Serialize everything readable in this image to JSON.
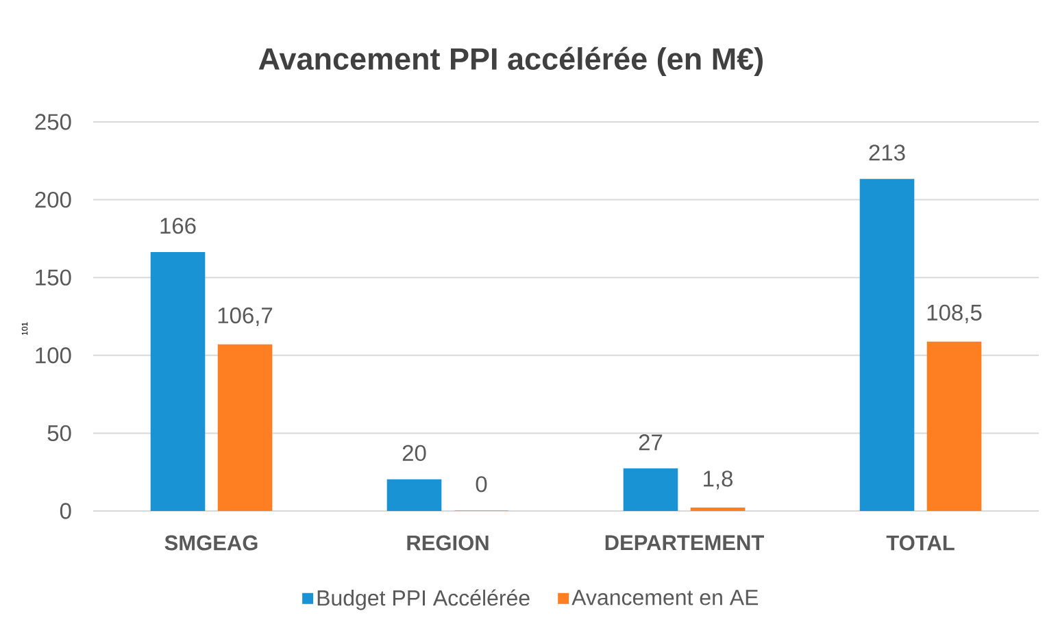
{
  "chart_data": {
    "type": "bar",
    "title": "Avancement PPI accélérée (en M€)",
    "categories": [
      "SMGEAG",
      "REGION",
      "DEPARTEMENT",
      "TOTAL"
    ],
    "series": [
      {
        "name": "Budget PPI Accélérée",
        "color": "#1a93d5",
        "values": [
          166,
          20,
          27,
          213
        ],
        "value_labels": [
          "166",
          "20",
          "27",
          "213"
        ]
      },
      {
        "name": "Avancement en AE",
        "color": "#fe7f22",
        "values": [
          106.7,
          0,
          1.8,
          108.5
        ],
        "value_labels": [
          "106,7",
          "0",
          "1,8",
          "108,5"
        ]
      }
    ],
    "ylim": [
      0,
      250
    ],
    "yticks": [
      0,
      50,
      100,
      150,
      200,
      250
    ],
    "grid": "y",
    "legend": "bottom",
    "annotations": [
      "101"
    ]
  }
}
